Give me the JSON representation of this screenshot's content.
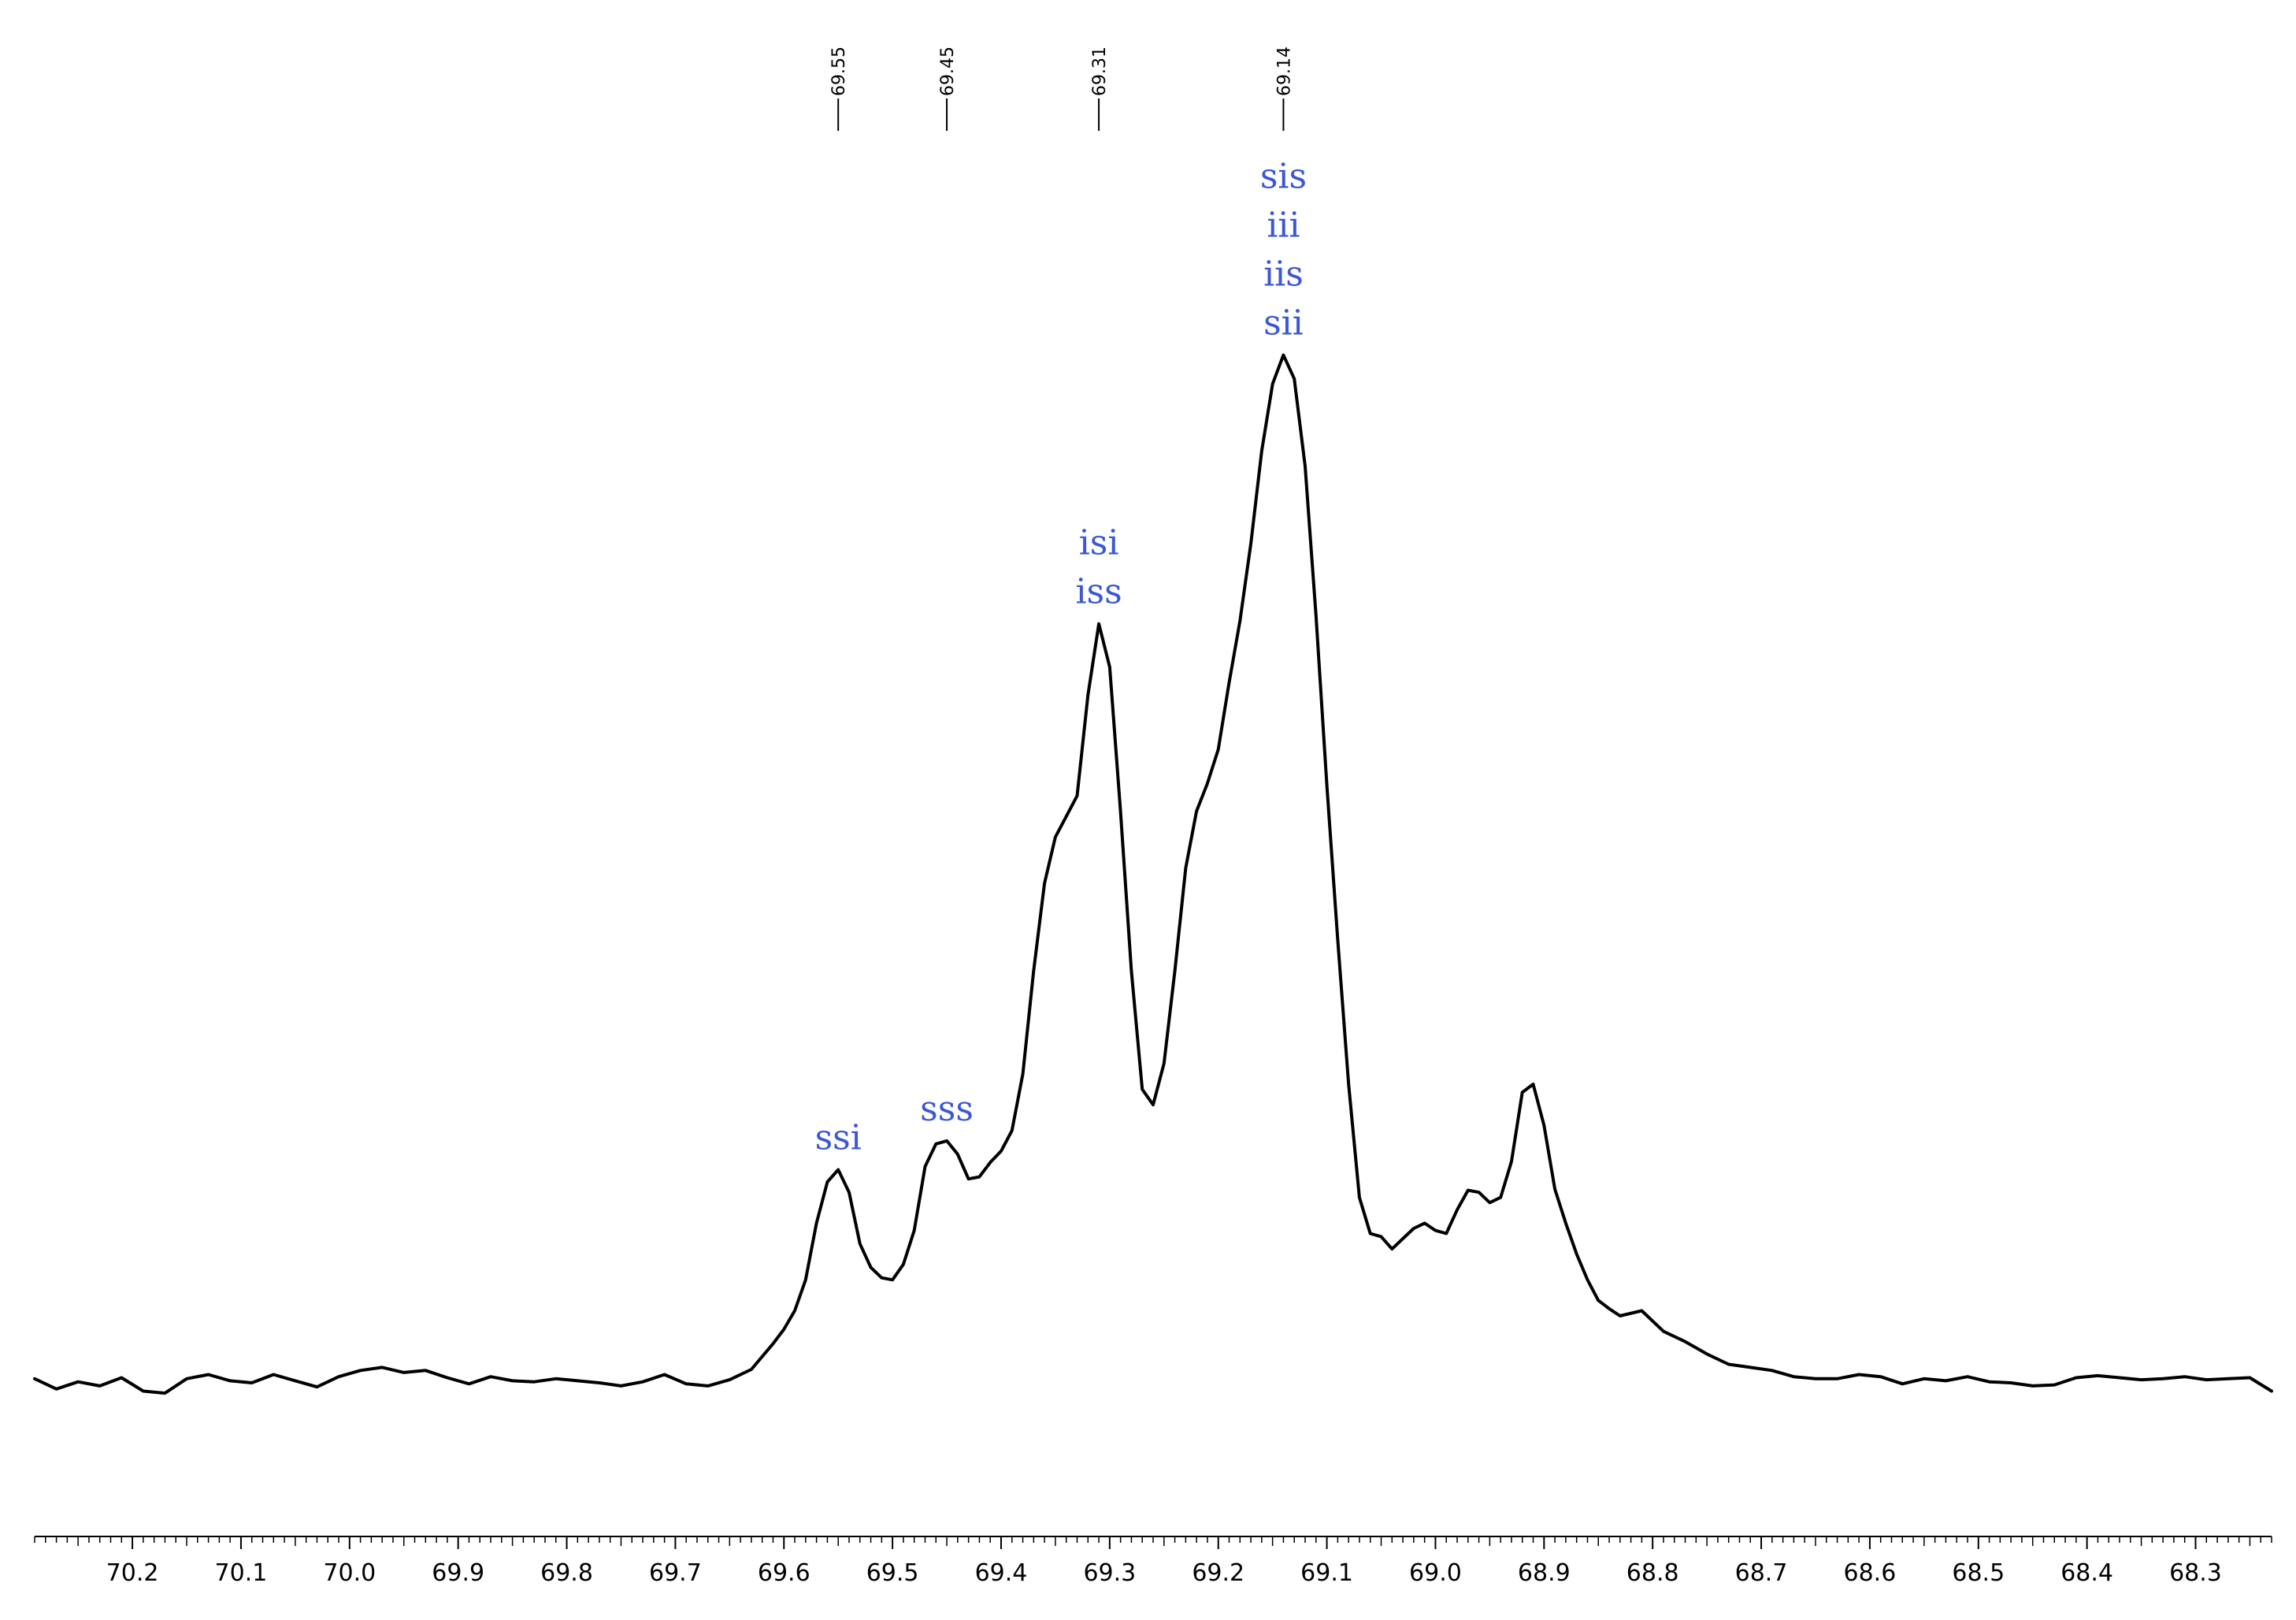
{
  "chart_data": {
    "type": "line",
    "title": "",
    "xlabel": "",
    "ylabel": "",
    "x_reversed": true,
    "xlim": [
      70.29,
      68.23
    ],
    "ylim": [
      -0.08,
      1.0
    ],
    "x_ticks": [
      "70.2",
      "70.1",
      "70.0",
      "69.9",
      "69.8",
      "69.7",
      "69.6",
      "69.5",
      "69.4",
      "69.3",
      "69.2",
      "69.1",
      "69.0",
      "68.9",
      "68.8",
      "68.7",
      "68.6",
      "68.5",
      "68.4",
      "68.3"
    ],
    "grid": false,
    "line_color": "#000000",
    "annotation_color": "#3b57d6",
    "peak_markers": [
      "69.55",
      "69.45",
      "69.31",
      "69.14"
    ],
    "annotations": [
      {
        "x": 69.55,
        "lines": [
          "ssi"
        ]
      },
      {
        "x": 69.45,
        "lines": [
          "sss"
        ]
      },
      {
        "x": 69.31,
        "lines": [
          "isi",
          "iss"
        ]
      },
      {
        "x": 69.14,
        "lines": [
          "sis",
          "iii",
          "iis",
          "sii"
        ]
      }
    ],
    "series": [
      {
        "x": [
          70.29,
          70.27,
          70.25,
          70.23,
          70.21,
          70.19,
          70.17,
          70.15,
          70.13,
          70.11,
          70.09,
          70.07,
          70.05,
          70.03,
          70.01,
          69.99,
          69.97,
          69.95,
          69.93,
          69.91,
          69.89,
          69.87,
          69.85,
          69.83,
          69.81,
          69.79,
          69.77,
          69.75,
          69.73,
          69.71,
          69.69,
          69.67,
          69.65,
          69.63,
          69.61,
          69.6,
          69.59,
          69.58,
          69.57,
          69.56,
          69.55,
          69.54,
          69.53,
          69.52,
          69.51,
          69.5,
          69.49,
          69.48,
          69.47,
          69.46,
          69.45,
          69.44,
          69.43,
          69.42,
          69.41,
          69.4,
          69.39,
          69.38,
          69.37,
          69.36,
          69.35,
          69.34,
          69.33,
          69.32,
          69.31,
          69.3,
          69.29,
          69.28,
          69.27,
          69.26,
          69.25,
          69.24,
          69.23,
          69.22,
          69.21,
          69.2,
          69.19,
          69.18,
          69.17,
          69.16,
          69.15,
          69.14,
          69.13,
          69.12,
          69.11,
          69.1,
          69.09,
          69.08,
          69.07,
          69.06,
          69.05,
          69.04,
          69.03,
          69.02,
          69.01,
          69.0,
          68.99,
          68.98,
          68.97,
          68.96,
          68.95,
          68.94,
          68.93,
          68.92,
          68.91,
          68.9,
          68.89,
          68.88,
          68.87,
          68.86,
          68.85,
          68.84,
          68.83,
          68.81,
          68.79,
          68.77,
          68.75,
          68.73,
          68.71,
          68.69,
          68.67,
          68.65,
          68.63,
          68.61,
          68.59,
          68.57,
          68.55,
          68.53,
          68.51,
          68.49,
          68.47,
          68.45,
          68.43,
          68.41,
          68.39,
          68.37,
          68.35,
          68.33,
          68.31,
          68.29,
          68.27,
          68.25,
          68.23
        ],
        "y": [
          0.004,
          -0.006,
          0.001,
          -0.003,
          0.005,
          -0.008,
          -0.01,
          0.004,
          0.008,
          0.002,
          0.0,
          0.008,
          0.002,
          -0.004,
          0.006,
          0.012,
          0.015,
          0.01,
          0.012,
          0.005,
          -0.001,
          0.006,
          0.002,
          0.001,
          0.004,
          0.002,
          0.0,
          -0.003,
          0.001,
          0.008,
          -0.001,
          -0.003,
          0.003,
          0.013,
          0.038,
          0.052,
          0.07,
          0.1,
          0.155,
          0.195,
          0.207,
          0.185,
          0.135,
          0.112,
          0.102,
          0.1,
          0.115,
          0.148,
          0.21,
          0.232,
          0.235,
          0.222,
          0.198,
          0.2,
          0.214,
          0.225,
          0.245,
          0.3,
          0.4,
          0.485,
          0.53,
          0.55,
          0.57,
          0.668,
          0.737,
          0.695,
          0.555,
          0.4,
          0.285,
          0.27,
          0.31,
          0.4,
          0.5,
          0.555,
          0.582,
          0.615,
          0.68,
          0.74,
          0.815,
          0.905,
          0.97,
          0.998,
          0.975,
          0.89,
          0.745,
          0.58,
          0.43,
          0.29,
          0.18,
          0.145,
          0.142,
          0.13,
          0.14,
          0.15,
          0.155,
          0.148,
          0.145,
          0.168,
          0.187,
          0.185,
          0.175,
          0.18,
          0.215,
          0.282,
          0.29,
          0.25,
          0.188,
          0.155,
          0.125,
          0.1,
          0.08,
          0.072,
          0.065,
          0.07,
          0.05,
          0.04,
          0.028,
          0.018,
          0.015,
          0.012,
          0.006,
          0.004,
          0.004,
          0.008,
          0.006,
          -0.001,
          0.004,
          0.002,
          0.006,
          0.001,
          0.0,
          -0.003,
          -0.002,
          0.005,
          0.007,
          0.005,
          0.003,
          0.004,
          0.006,
          0.003,
          0.004,
          0.005,
          -0.008
        ]
      }
    ]
  }
}
